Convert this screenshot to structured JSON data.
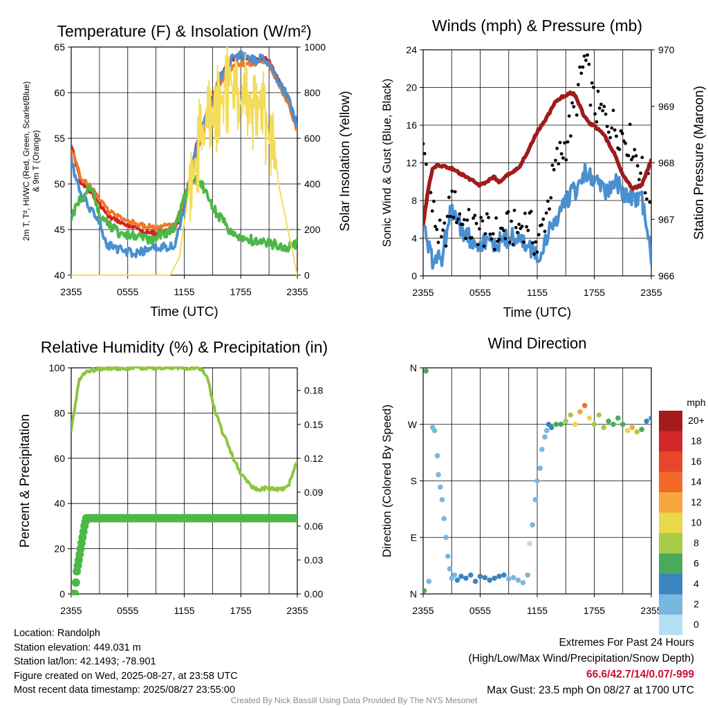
{
  "chart_data": [
    {
      "type": "line",
      "title": "Temperature (F) & Insolation (W/m²)",
      "xlabel": "Time (UTC)",
      "ylabel": "2m T, Td, HI/WC (Red, Green, Scarlet/Blue) & 9m T (Orange)",
      "y2label": "Solar Insolation (Yellow)",
      "xticks": [
        "2355",
        "0555",
        "1155",
        "1755",
        "2355"
      ],
      "ylim": [
        40,
        67
      ],
      "yticks": [
        40,
        45,
        50,
        55,
        60,
        65
      ],
      "y2lim": [
        0,
        1000
      ],
      "y2ticks": [
        0,
        200,
        400,
        600,
        800,
        1000
      ],
      "grid": true,
      "series": [
        {
          "name": "2m T",
          "color": "#d42020",
          "axis": "left",
          "hour": [
            0,
            1,
            2,
            3,
            4,
            5,
            6,
            7,
            8,
            9,
            10,
            11,
            12,
            13,
            14,
            15,
            16,
            17,
            18,
            19,
            20,
            21,
            22,
            23,
            24
          ],
          "values": [
            55.5,
            51,
            50,
            48.5,
            47,
            46.5,
            46,
            45.5,
            45,
            45,
            45.2,
            45.5,
            48,
            54,
            58,
            61,
            64,
            65.5,
            66,
            65.5,
            65.6,
            65.4,
            63,
            61,
            57.5
          ]
        },
        {
          "name": "9m T",
          "color": "#f07828",
          "axis": "left",
          "hour": [
            0,
            1,
            2,
            3,
            4,
            5,
            6,
            7,
            8,
            9,
            10,
            11,
            12,
            13,
            14,
            15,
            16,
            17,
            18,
            19,
            20,
            21,
            22,
            23,
            24
          ],
          "values": [
            55,
            51.5,
            50.5,
            49,
            47.5,
            47,
            46.5,
            46,
            45.8,
            45.6,
            45.8,
            46,
            48.5,
            53.5,
            57,
            60,
            63,
            64.5,
            65,
            65,
            65.2,
            65,
            62.5,
            60.5,
            57
          ]
        },
        {
          "name": "HI/WC",
          "color": "#4a90d0",
          "axis": "left",
          "hour": [
            0,
            1,
            2,
            3,
            3.5,
            4,
            5,
            6,
            7,
            8,
            9,
            10,
            11,
            12,
            13,
            14,
            15,
            16,
            17,
            18,
            19,
            20,
            21,
            22,
            23,
            24
          ],
          "values": [
            53.5,
            49.5,
            48,
            46.5,
            44,
            43.5,
            43,
            42.8,
            42.5,
            43,
            43.2,
            43.4,
            43.6,
            48,
            53.5,
            58,
            61,
            64,
            65.5,
            66,
            65.5,
            65.6,
            65.4,
            63,
            61,
            57.5
          ]
        },
        {
          "name": "2m Td",
          "color": "#4cb848",
          "axis": "left",
          "hour": [
            0,
            0.5,
            1,
            1.5,
            2,
            2.5,
            3,
            4,
            5,
            6,
            7,
            8,
            9,
            10,
            11,
            12,
            13,
            14,
            15,
            16,
            17,
            18,
            19,
            20,
            21,
            22,
            23,
            24
          ],
          "values": [
            46.5,
            48,
            49,
            50,
            50.5,
            49,
            47,
            46,
            45,
            44.8,
            44.5,
            44.3,
            44.5,
            45,
            45.5,
            49,
            51.5,
            50.5,
            48,
            46.5,
            45,
            44.5,
            44.2,
            44,
            43.8,
            43.6,
            43.4,
            43.8
          ]
        },
        {
          "name": "Solar Insolation",
          "color": "#f4dc5a",
          "axis": "right",
          "hour": [
            0,
            10.5,
            11.5,
            12.5,
            13.5,
            14.5,
            15.5,
            16.5,
            17.5,
            18.5,
            19.5,
            20.5,
            21.5,
            22,
            22.5,
            23,
            23.5,
            24
          ],
          "values": [
            0,
            0,
            80,
            380,
            650,
            750,
            820,
            900,
            870,
            850,
            800,
            780,
            600,
            400,
            300,
            200,
            100,
            0
          ]
        }
      ]
    },
    {
      "type": "line",
      "title": "Winds (mph) & Pressure (mb)",
      "xlabel": "Time (UTC)",
      "ylabel": "Sonic Wind & Gust (Blue, Black)",
      "y2label": "Station Pressure (Maroon)",
      "xticks": [
        "2355",
        "0555",
        "1155",
        "1755",
        "2355"
      ],
      "ylim": [
        0,
        24
      ],
      "yticks": [
        0,
        4,
        8,
        12,
        16,
        20,
        24
      ],
      "y2lim": [
        966,
        970
      ],
      "y2ticks": [
        966,
        967,
        968,
        969,
        970
      ],
      "grid": true,
      "series": [
        {
          "name": "Sonic Wind",
          "color": "#4a90d0",
          "axis": "left",
          "hour": [
            0,
            0.5,
            1,
            1.5,
            2,
            2.5,
            3,
            3.5,
            4,
            5,
            6,
            7,
            8,
            9,
            10,
            11,
            12,
            13,
            14,
            15,
            16,
            17,
            18,
            19,
            20,
            21,
            22,
            23,
            24
          ],
          "values": [
            6,
            3,
            1.5,
            2,
            2,
            5,
            7,
            6.5,
            5,
            4,
            3.5,
            3.5,
            3.5,
            4,
            4,
            3,
            2,
            4,
            6,
            8,
            9,
            11,
            10,
            9,
            10,
            9,
            8,
            8,
            2
          ]
        },
        {
          "name": "Gust",
          "color": "#000000",
          "axis": "left",
          "hour": [
            0,
            1,
            2,
            3,
            4,
            5,
            6,
            7,
            8,
            9,
            10,
            11,
            12,
            13,
            14,
            15,
            16,
            17,
            18,
            19,
            20,
            21,
            22,
            23,
            24
          ],
          "values": [
            14,
            7,
            3,
            8,
            6,
            5,
            5,
            4.5,
            4.5,
            5,
            5,
            6,
            3,
            7,
            12,
            14,
            18,
            23,
            18,
            17,
            16,
            15,
            14,
            11,
            8
          ]
        },
        {
          "name": "Station Pressure",
          "color": "#a01c1c",
          "axis": "right",
          "hour": [
            0,
            0.5,
            1,
            1.5,
            2,
            3,
            4,
            5,
            6,
            7,
            7.5,
            8,
            9,
            10,
            11,
            12,
            13,
            14,
            15,
            15.5,
            16,
            16.5,
            17,
            17.5,
            18,
            19,
            20,
            21,
            22,
            23,
            24
          ],
          "values": [
            966.9,
            967.5,
            967.9,
            967.95,
            967.95,
            967.9,
            967.8,
            967.7,
            967.6,
            967.7,
            967.75,
            967.65,
            967.8,
            967.9,
            968.2,
            968.55,
            968.8,
            969.1,
            969.2,
            969.25,
            969.2,
            969.0,
            968.8,
            968.7,
            968.65,
            968.5,
            968.2,
            967.8,
            967.55,
            967.6,
            968.05
          ]
        }
      ]
    },
    {
      "type": "line",
      "title": "Relative Humidity (%) & Precipitation (in)",
      "xlabel": "",
      "ylabel": "Percent & Precipitation",
      "xticks": [
        "2355",
        "0555",
        "1155",
        "1755",
        "2355"
      ],
      "ylim": [
        0,
        100
      ],
      "yticks": [
        0,
        20,
        40,
        60,
        80,
        100
      ],
      "y2lim": [
        0,
        0.2
      ],
      "y2ticks": [
        "0.00",
        "0.03",
        "0.06",
        "0.09",
        "0.12",
        "0.15",
        "0.18"
      ],
      "grid": true,
      "series": [
        {
          "name": "Relative Humidity",
          "color": "#8dc63f",
          "axis": "left",
          "hour": [
            0,
            0.3,
            0.6,
            0.9,
            1.2,
            1.6,
            2,
            2.5,
            3,
            4,
            6,
            8,
            10,
            12,
            13,
            14,
            14.5,
            15,
            15.5,
            16,
            16.5,
            17,
            18,
            19,
            20,
            21,
            22,
            23,
            24
          ],
          "values": [
            73,
            80,
            88,
            95,
            97,
            98,
            99,
            99,
            99.5,
            100,
            100,
            100,
            100,
            100,
            100,
            99,
            95,
            85,
            78,
            72,
            68,
            62,
            53,
            48,
            46,
            47,
            46,
            47,
            59
          ]
        },
        {
          "name": "Precipitation",
          "color": "#4cb848",
          "axis": "right",
          "hour": [
            0,
            0.2,
            0.4,
            0.6,
            0.8,
            1.0,
            1.2,
            1.4,
            1.6,
            2,
            6,
            12,
            18,
            24
          ],
          "values": [
            0,
            0,
            0,
            0.02,
            0.03,
            0.04,
            0.05,
            0.06,
            0.067,
            0.067,
            0.067,
            0.067,
            0.067,
            0.067
          ]
        }
      ]
    },
    {
      "type": "scatter",
      "title": "Wind Direction",
      "xlabel": "",
      "ylabel": "Direction (Colored By Speed)",
      "xticks": [
        "2355",
        "0555",
        "1155",
        "1755",
        "2355"
      ],
      "ylim": [
        0,
        360
      ],
      "yticks": [
        "N",
        "E",
        "S",
        "W",
        "N"
      ],
      "grid": true,
      "legend": {
        "title": "mph",
        "placement": "right",
        "labels": [
          "20+",
          "18",
          "16",
          "14",
          "12",
          "10",
          "8",
          "6",
          "4",
          "2",
          "0"
        ],
        "colors": [
          "#a51a1a",
          "#d42828",
          "#e8462b",
          "#f26a2a",
          "#f8a640",
          "#e8d84a",
          "#a6cc48",
          "#4aaa5c",
          "#3a84c0",
          "#78b8e0",
          "#b4e0f4"
        ]
      },
      "series": [
        {
          "name": "Wind Direction",
          "hour": [
            0.1,
            0.3,
            0.6,
            1.0,
            1.2,
            1.5,
            1.6,
            1.8,
            2.0,
            2.2,
            2.4,
            2.6,
            2.8,
            3.0,
            3.3,
            3.6,
            4.0,
            4.5,
            5.0,
            5.5,
            6.0,
            6.5,
            7.0,
            7.5,
            8.0,
            8.5,
            9.0,
            9.5,
            10.0,
            10.5,
            11.0,
            11.2,
            11.5,
            11.8,
            12.0,
            12.3,
            12.5,
            12.8,
            13.0,
            13.2,
            13.5,
            14.0,
            14.5,
            15.0,
            15.5,
            16.0,
            16.5,
            17.0,
            17.5,
            18.0,
            18.5,
            19.0,
            19.5,
            20.0,
            20.5,
            21.0,
            21.5,
            22.0,
            22.5,
            23.0,
            23.5,
            24.0
          ],
          "values": [
            5,
            355,
            20,
            265,
            260,
            220,
            190,
            170,
            150,
            120,
            90,
            60,
            40,
            25,
            30,
            22,
            28,
            25,
            30,
            20,
            28,
            26,
            22,
            25,
            28,
            30,
            24,
            26,
            22,
            18,
            30,
            80,
            110,
            150,
            180,
            200,
            230,
            250,
            260,
            270,
            265,
            270,
            270,
            275,
            285,
            270,
            290,
            300,
            280,
            270,
            285,
            265,
            275,
            270,
            280,
            270,
            260,
            265,
            258,
            262,
            275,
            280
          ],
          "speed": [
            6,
            6,
            2,
            3,
            3,
            3,
            3,
            2,
            2,
            2,
            2,
            2,
            2,
            2,
            3,
            4,
            4,
            4,
            4,
            4,
            4,
            4,
            4,
            4,
            4,
            4,
            3,
            3,
            3,
            2,
            2,
            1,
            2,
            2,
            2,
            2,
            2,
            3,
            3,
            4,
            4,
            6,
            7,
            8,
            9,
            10,
            12,
            14,
            10,
            9,
            8,
            8,
            7,
            7,
            6,
            6,
            10,
            12,
            9,
            6,
            4,
            4
          ]
        }
      ]
    }
  ],
  "info": {
    "location": "Location: Randolph",
    "elevation": "Station elevation: 449.031 m",
    "latlon": "Station lat/lon: 42.1493; -78.901",
    "created": "Figure created on Wed, 2025-08-27, at 23:58 UTC",
    "timestamp": "Most recent data timestamp: 2025/08/27 23:55:00"
  },
  "extremes": {
    "heading": "Extremes For Past 24 Hours",
    "subheading": "(High/Low/Max Wind/Precipitation/Snow Depth)",
    "values": "66.6/42.7/14/0.07/-999",
    "max_gust": "Max Gust: 23.5 mph On 08/27 at 1700 UTC"
  },
  "credit": "Created By Nick Bassill Using Data Provided By The NYS Mesonet"
}
